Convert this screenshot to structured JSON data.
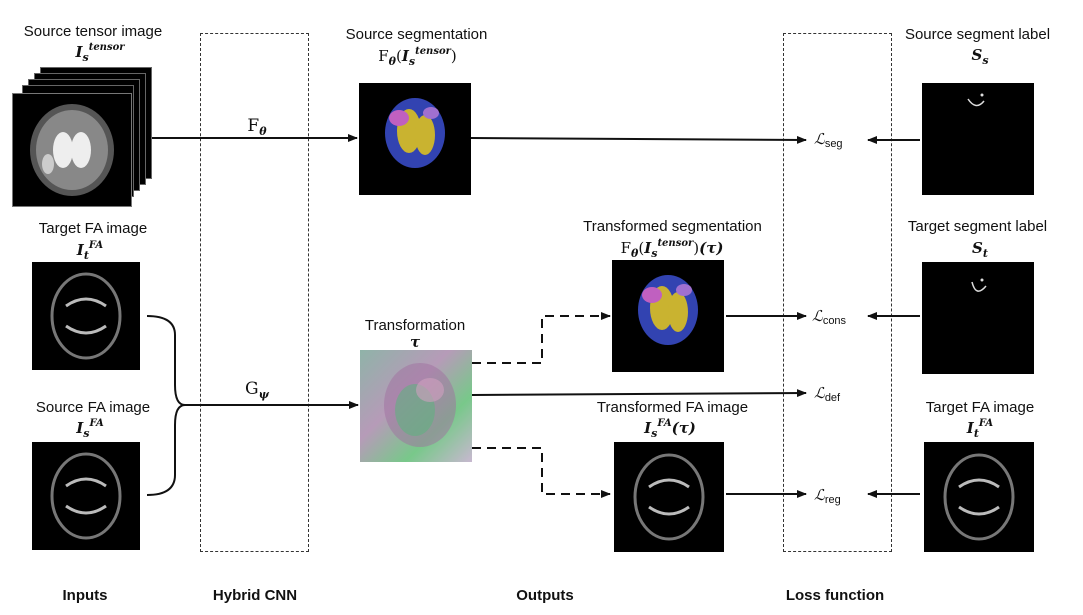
{
  "inputs": {
    "source_tensor": {
      "title": "Source tensor image",
      "symbol_base": "I",
      "symbol_sub": "s",
      "symbol_sup": "tensor"
    },
    "target_fa": {
      "title": "Target FA image",
      "symbol_base": "I",
      "symbol_sub": "t",
      "symbol_sup": "FA"
    },
    "source_fa": {
      "title": "Source FA image",
      "symbol_base": "I",
      "symbol_sub": "s",
      "symbol_sup": "FA"
    }
  },
  "network": {
    "f_theta": "ᵘθ",
    "f_symbol": "F",
    "f_sub": "θ",
    "g_symbol": "G",
    "g_sub": "ψ"
  },
  "outputs": {
    "source_segmentation": {
      "title": "Source segmentation",
      "formula_pre": "F",
      "formula_sub": "θ",
      "formula_arg_base": "I",
      "formula_arg_sub": "s",
      "formula_arg_sup": "tensor"
    },
    "transformed_segmentation": {
      "title": "Transformed segmentation",
      "formula_pre": "F",
      "formula_sub": "θ",
      "formula_arg_base": "I",
      "formula_arg_sub": "s",
      "formula_arg_sup": "tensor",
      "formula_tail": "(τ)"
    },
    "transformation": {
      "title": "Transformation",
      "symbol": "τ"
    },
    "transformed_fa": {
      "title": "Transformed FA image",
      "symbol_base": "I",
      "symbol_sub": "s",
      "symbol_sup": "FA",
      "symbol_tail": "(τ)"
    }
  },
  "losses": {
    "seg": {
      "L": "ℒ",
      "sub": "seg"
    },
    "cons": {
      "L": "ℒ",
      "sub": "cons"
    },
    "def": {
      "L": "ℒ",
      "sub": "def"
    },
    "reg": {
      "L": "ℒ",
      "sub": "reg"
    }
  },
  "labels": {
    "source_segment_label": {
      "title": "Source segment label",
      "symbol_base": "S",
      "symbol_sub": "s"
    },
    "target_segment_label": {
      "title": "Target segment label",
      "symbol_base": "S",
      "symbol_sub": "t"
    },
    "target_fa_image": {
      "title": "Target FA image",
      "symbol_base": "I",
      "symbol_sub": "t",
      "symbol_sup": "FA"
    }
  },
  "footer": {
    "inputs": "Inputs",
    "hybrid_cnn": "Hybrid CNN",
    "outputs": "Outputs",
    "loss_function": "Loss function"
  }
}
